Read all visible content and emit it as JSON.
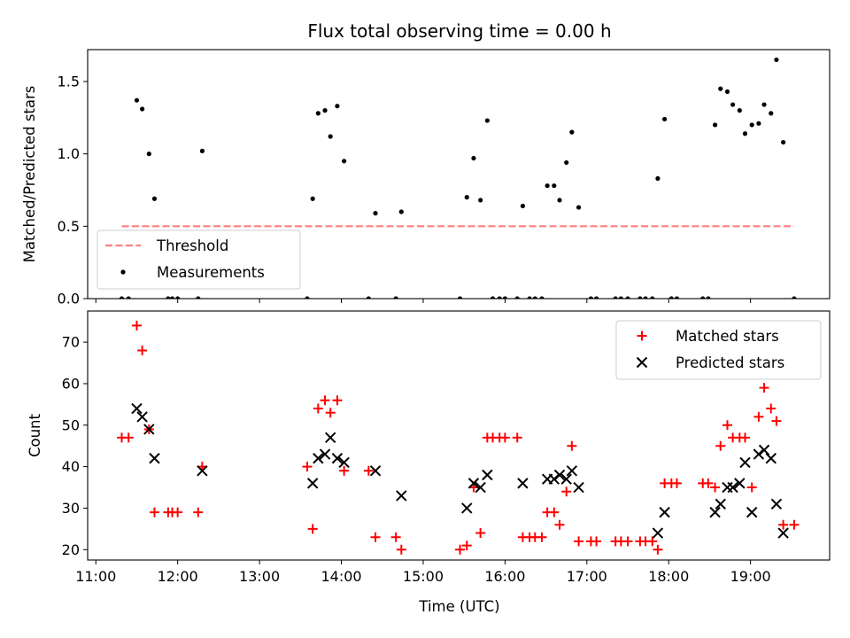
{
  "title": "Flux total observing time = 0.00 h",
  "xlabel": "Time (UTC)",
  "colors": {
    "threshold": "#ff7f7f",
    "measurement": "#000000",
    "matched": "#ff0000",
    "predicted": "#000000"
  },
  "x_ticks": [
    "11:00",
    "12:00",
    "13:00",
    "14:00",
    "15:00",
    "16:00",
    "17:00",
    "18:00",
    "19:00"
  ],
  "chart_data": [
    {
      "type": "scatter",
      "ylabel": "Matched/Predicted stars",
      "xlim": [
        "10:54",
        "19:58"
      ],
      "ylim": [
        0,
        1.72
      ],
      "yticks": [
        "0.0",
        "0.5",
        "1.0",
        "1.5"
      ],
      "legend_position": "lower-left",
      "threshold": {
        "name": "Threshold",
        "value": 0.5,
        "x_range": [
          "11:19",
          "19:32"
        ],
        "style": "dashed"
      },
      "series": [
        {
          "name": "Measurements",
          "points": [
            [
              "11:19",
              0
            ],
            [
              "11:24",
              0
            ],
            [
              "11:30",
              1.37
            ],
            [
              "11:34",
              1.31
            ],
            [
              "11:39",
              1.0
            ],
            [
              "11:43",
              0.69
            ],
            [
              "11:53",
              0
            ],
            [
              "11:56",
              0
            ],
            [
              "12:00",
              0
            ],
            [
              "12:15",
              0
            ],
            [
              "12:18",
              1.02
            ],
            [
              "13:35",
              0
            ],
            [
              "13:39",
              0.69
            ],
            [
              "13:43",
              1.28
            ],
            [
              "13:48",
              1.3
            ],
            [
              "13:52",
              1.12
            ],
            [
              "13:57",
              1.33
            ],
            [
              "14:02",
              0.95
            ],
            [
              "14:20",
              0
            ],
            [
              "14:25",
              0.59
            ],
            [
              "14:40",
              0
            ],
            [
              "14:44",
              0.6
            ],
            [
              "15:27",
              0
            ],
            [
              "15:32",
              0.7
            ],
            [
              "15:37",
              0.97
            ],
            [
              "15:42",
              0.68
            ],
            [
              "15:47",
              1.23
            ],
            [
              "15:51",
              0
            ],
            [
              "15:56",
              0
            ],
            [
              "16:00",
              0
            ],
            [
              "16:09",
              0
            ],
            [
              "16:13",
              0.64
            ],
            [
              "16:18",
              0
            ],
            [
              "16:22",
              0
            ],
            [
              "16:27",
              0
            ],
            [
              "16:31",
              0.78
            ],
            [
              "16:36",
              0.78
            ],
            [
              "16:40",
              0.68
            ],
            [
              "16:45",
              0.94
            ],
            [
              "16:49",
              1.15
            ],
            [
              "16:54",
              0.63
            ],
            [
              "17:03",
              0
            ],
            [
              "17:07",
              0
            ],
            [
              "17:21",
              0
            ],
            [
              "17:25",
              0
            ],
            [
              "17:30",
              0
            ],
            [
              "17:39",
              0
            ],
            [
              "17:43",
              0
            ],
            [
              "17:48",
              0
            ],
            [
              "17:52",
              0.83
            ],
            [
              "17:57",
              1.24
            ],
            [
              "18:02",
              0
            ],
            [
              "18:06",
              0
            ],
            [
              "18:25",
              0
            ],
            [
              "18:29",
              0
            ],
            [
              "18:34",
              1.2
            ],
            [
              "18:38",
              1.45
            ],
            [
              "18:43",
              1.43
            ],
            [
              "18:47",
              1.34
            ],
            [
              "18:52",
              1.3
            ],
            [
              "18:56",
              1.14
            ],
            [
              "19:01",
              1.2
            ],
            [
              "19:06",
              1.21
            ],
            [
              "19:10",
              1.34
            ],
            [
              "19:15",
              1.28
            ],
            [
              "19:19",
              1.65
            ],
            [
              "19:24",
              1.08
            ],
            [
              "19:32",
              0
            ]
          ]
        }
      ]
    },
    {
      "type": "scatter",
      "ylabel": "Count",
      "xlim": [
        "10:54",
        "19:58"
      ],
      "ylim": [
        17.5,
        77.5
      ],
      "yticks": [
        "20",
        "30",
        "40",
        "50",
        "60",
        "70"
      ],
      "legend_position": "upper-right",
      "series": [
        {
          "name": "Matched stars",
          "marker": "plus",
          "points": [
            [
              "11:19",
              47
            ],
            [
              "11:24",
              47
            ],
            [
              "11:30",
              74
            ],
            [
              "11:34",
              68
            ],
            [
              "11:39",
              49
            ],
            [
              "11:43",
              29
            ],
            [
              "11:53",
              29
            ],
            [
              "11:56",
              29
            ],
            [
              "12:00",
              29
            ],
            [
              "12:15",
              29
            ],
            [
              "12:18",
              40
            ],
            [
              "13:35",
              40
            ],
            [
              "13:39",
              25
            ],
            [
              "13:43",
              54
            ],
            [
              "13:48",
              56
            ],
            [
              "13:52",
              53
            ],
            [
              "13:57",
              56
            ],
            [
              "14:02",
              39
            ],
            [
              "14:20",
              39
            ],
            [
              "14:25",
              23
            ],
            [
              "14:40",
              23
            ],
            [
              "14:44",
              20
            ],
            [
              "15:27",
              20
            ],
            [
              "15:32",
              21
            ],
            [
              "15:37",
              35
            ],
            [
              "15:42",
              24
            ],
            [
              "15:47",
              47
            ],
            [
              "15:51",
              47
            ],
            [
              "15:56",
              47
            ],
            [
              "16:00",
              47
            ],
            [
              "16:09",
              47
            ],
            [
              "16:13",
              23
            ],
            [
              "16:18",
              23
            ],
            [
              "16:22",
              23
            ],
            [
              "16:27",
              23
            ],
            [
              "16:31",
              29
            ],
            [
              "16:36",
              29
            ],
            [
              "16:40",
              26
            ],
            [
              "16:45",
              34
            ],
            [
              "16:49",
              45
            ],
            [
              "16:54",
              22
            ],
            [
              "17:03",
              22
            ],
            [
              "17:07",
              22
            ],
            [
              "17:21",
              22
            ],
            [
              "17:25",
              22
            ],
            [
              "17:30",
              22
            ],
            [
              "17:39",
              22
            ],
            [
              "17:43",
              22
            ],
            [
              "17:48",
              22
            ],
            [
              "17:52",
              20
            ],
            [
              "17:57",
              36
            ],
            [
              "18:02",
              36
            ],
            [
              "18:06",
              36
            ],
            [
              "18:25",
              36
            ],
            [
              "18:29",
              36
            ],
            [
              "18:34",
              35
            ],
            [
              "18:38",
              45
            ],
            [
              "18:43",
              50
            ],
            [
              "18:47",
              47
            ],
            [
              "18:52",
              47
            ],
            [
              "18:56",
              47
            ],
            [
              "19:01",
              35
            ],
            [
              "19:06",
              52
            ],
            [
              "19:10",
              59
            ],
            [
              "19:15",
              54
            ],
            [
              "19:19",
              51
            ],
            [
              "19:24",
              26
            ],
            [
              "19:32",
              26
            ]
          ]
        },
        {
          "name": "Predicted stars",
          "marker": "x",
          "points": [
            [
              "11:30",
              54
            ],
            [
              "11:34",
              52
            ],
            [
              "11:39",
              49
            ],
            [
              "11:43",
              42
            ],
            [
              "12:18",
              39
            ],
            [
              "13:39",
              36
            ],
            [
              "13:43",
              42
            ],
            [
              "13:48",
              43
            ],
            [
              "13:52",
              47
            ],
            [
              "13:57",
              42
            ],
            [
              "14:02",
              41
            ],
            [
              "14:25",
              39
            ],
            [
              "14:44",
              33
            ],
            [
              "15:32",
              30
            ],
            [
              "15:37",
              36
            ],
            [
              "15:42",
              35
            ],
            [
              "15:47",
              38
            ],
            [
              "16:13",
              36
            ],
            [
              "16:31",
              37
            ],
            [
              "16:36",
              37
            ],
            [
              "16:40",
              38
            ],
            [
              "16:45",
              37
            ],
            [
              "16:49",
              39
            ],
            [
              "16:54",
              35
            ],
            [
              "17:52",
              24
            ],
            [
              "17:57",
              29
            ],
            [
              "18:34",
              29
            ],
            [
              "18:38",
              31
            ],
            [
              "18:43",
              35
            ],
            [
              "18:47",
              35
            ],
            [
              "18:52",
              36
            ],
            [
              "18:56",
              41
            ],
            [
              "19:01",
              29
            ],
            [
              "19:06",
              43
            ],
            [
              "19:10",
              44
            ],
            [
              "19:15",
              42
            ],
            [
              "19:19",
              31
            ],
            [
              "19:24",
              24
            ]
          ]
        }
      ]
    }
  ]
}
